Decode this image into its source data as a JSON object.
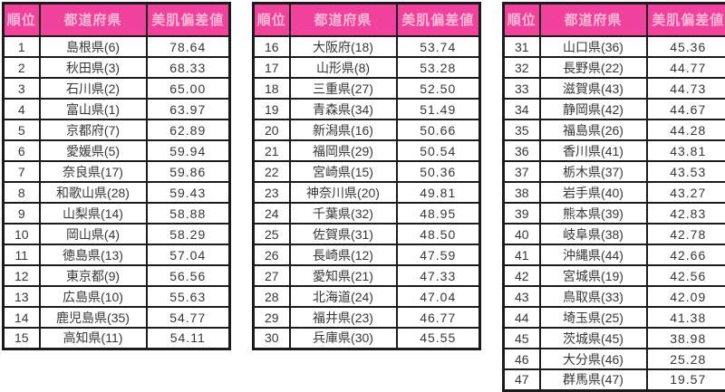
{
  "colors": {
    "header_bg": "#f0429c",
    "header_text": "#ffb9d8",
    "border": "#1b1b1b",
    "cell_text": "#373737",
    "page_bg": "#ffffff"
  },
  "chart_data": {
    "type": "table",
    "columns": [
      "順位",
      "都道府県",
      "美肌偏差値"
    ],
    "layout": "three tables side by side",
    "table_ranges": [
      [
        0,
        15
      ],
      [
        15,
        30
      ],
      [
        30,
        47
      ]
    ],
    "rows": [
      [
        1,
        "島根県(6)",
        "78.64"
      ],
      [
        2,
        "秋田県(3)",
        "68.33"
      ],
      [
        3,
        "石川県(2)",
        "65.00"
      ],
      [
        4,
        "富山県(1)",
        "63.97"
      ],
      [
        5,
        "京都府(7)",
        "62.89"
      ],
      [
        6,
        "愛媛県(5)",
        "59.94"
      ],
      [
        7,
        "奈良県(17)",
        "59.86"
      ],
      [
        8,
        "和歌山県(28)",
        "59.43"
      ],
      [
        9,
        "山梨県(14)",
        "58.88"
      ],
      [
        10,
        "岡山県(4)",
        "58.29"
      ],
      [
        11,
        "徳島県(13)",
        "57.04"
      ],
      [
        12,
        "東京都(9)",
        "56.56"
      ],
      [
        13,
        "広島県(10)",
        "55.63"
      ],
      [
        14,
        "鹿児島県(35)",
        "54.77"
      ],
      [
        15,
        "高知県(11)",
        "54.11"
      ],
      [
        16,
        "大阪府(18)",
        "53.74"
      ],
      [
        17,
        "山形県(8)",
        "53.28"
      ],
      [
        18,
        "三重県(27)",
        "52.50"
      ],
      [
        19,
        "青森県(34)",
        "51.49"
      ],
      [
        20,
        "新潟県(16)",
        "50.66"
      ],
      [
        21,
        "福岡県(29)",
        "50.54"
      ],
      [
        22,
        "宮崎県(15)",
        "50.36"
      ],
      [
        23,
        "神奈川県(20)",
        "49.81"
      ],
      [
        24,
        "千葉県(32)",
        "48.95"
      ],
      [
        25,
        "佐賀県(31)",
        "48.50"
      ],
      [
        26,
        "長崎県(12)",
        "47.59"
      ],
      [
        27,
        "愛知県(21)",
        "47.33"
      ],
      [
        28,
        "北海道(24)",
        "47.04"
      ],
      [
        29,
        "福井県(23)",
        "46.77"
      ],
      [
        30,
        "兵庫県(30)",
        "45.55"
      ],
      [
        31,
        "山口県(36)",
        "45.36"
      ],
      [
        32,
        "長野県(22)",
        "44.77"
      ],
      [
        33,
        "滋賀県(43)",
        "44.73"
      ],
      [
        34,
        "静岡県(42)",
        "44.67"
      ],
      [
        35,
        "福島県(26)",
        "44.28"
      ],
      [
        36,
        "香川県(41)",
        "43.81"
      ],
      [
        37,
        "栃木県(37)",
        "43.53"
      ],
      [
        38,
        "岩手県(40)",
        "43.27"
      ],
      [
        39,
        "熊本県(39)",
        "42.83"
      ],
      [
        40,
        "岐阜県(38)",
        "42.78"
      ],
      [
        41,
        "沖縄県(44)",
        "42.66"
      ],
      [
        42,
        "宮城県(19)",
        "42.56"
      ],
      [
        43,
        "鳥取県(33)",
        "42.09"
      ],
      [
        44,
        "埼玉県(25)",
        "41.38"
      ],
      [
        45,
        "茨城県(45)",
        "38.98"
      ],
      [
        46,
        "大分県(46)",
        "25.28"
      ],
      [
        47,
        "群馬県(47)",
        "19.57"
      ]
    ]
  }
}
